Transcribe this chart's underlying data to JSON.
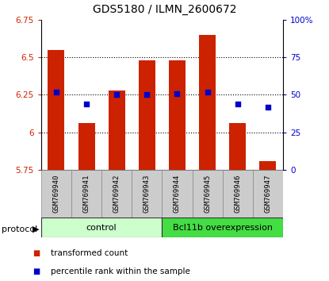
{
  "title": "GDS5180 / ILMN_2600672",
  "samples": [
    "GSM769940",
    "GSM769941",
    "GSM769942",
    "GSM769943",
    "GSM769944",
    "GSM769945",
    "GSM769946",
    "GSM769947"
  ],
  "transformed_count": [
    6.55,
    6.06,
    6.28,
    6.48,
    6.48,
    6.65,
    6.06,
    5.81
  ],
  "percentile_rank": [
    52,
    44,
    50,
    50,
    51,
    52,
    44,
    42
  ],
  "ylim_left": [
    5.75,
    6.75
  ],
  "ylim_right": [
    0,
    100
  ],
  "yticks_left": [
    5.75,
    6.0,
    6.25,
    6.5,
    6.75
  ],
  "yticks_right": [
    0,
    25,
    50,
    75,
    100
  ],
  "ytick_labels_left": [
    "5.75",
    "6",
    "6.25",
    "6.5",
    "6.75"
  ],
  "ytick_labels_right": [
    "0",
    "25",
    "50",
    "75",
    "100%"
  ],
  "groups": [
    {
      "label": "control",
      "indices": [
        0,
        1,
        2,
        3
      ],
      "color": "#ccffcc"
    },
    {
      "label": "Bcl11b overexpression",
      "indices": [
        4,
        5,
        6,
        7
      ],
      "color": "#44dd44"
    }
  ],
  "bar_color": "#cc2200",
  "dot_color": "#0000cc",
  "bar_width": 0.55,
  "bar_baseline": 5.75,
  "grid_dotted_at": [
    6.0,
    6.25,
    6.5
  ],
  "legend_items": [
    {
      "label": "transformed count",
      "color": "#cc2200"
    },
    {
      "label": "percentile rank within the sample",
      "color": "#0000cc"
    }
  ]
}
